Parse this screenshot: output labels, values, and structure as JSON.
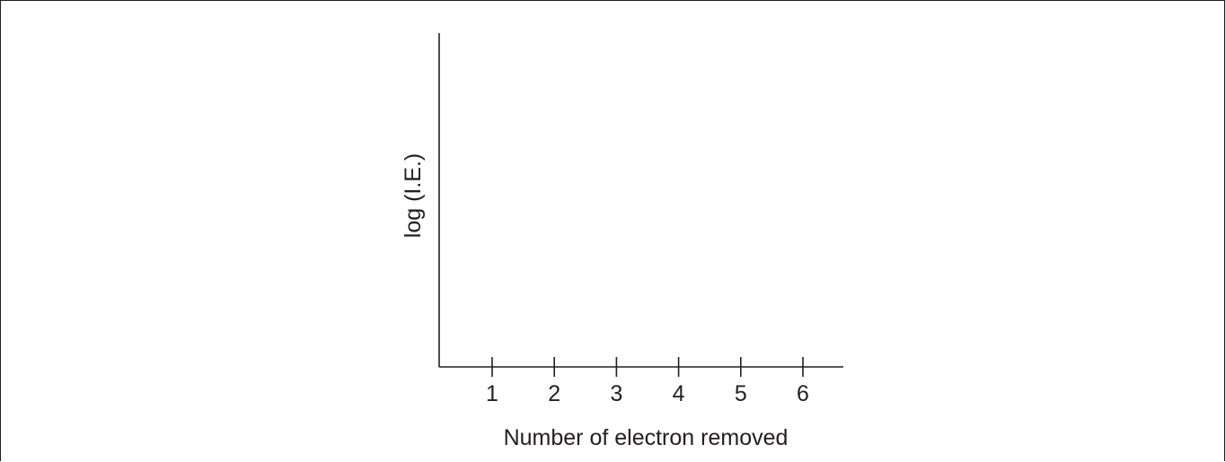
{
  "chart_data": {
    "type": "line",
    "title": "",
    "xlabel": "Number of electron removed",
    "ylabel": "log (I.E.)",
    "x_ticks": [
      "1",
      "2",
      "3",
      "4",
      "5",
      "6"
    ],
    "series": [],
    "grid": false,
    "colors": {
      "axis": "#231f20"
    }
  }
}
